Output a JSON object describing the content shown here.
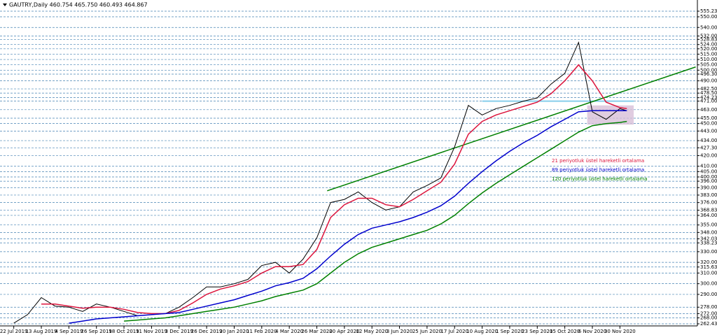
{
  "chart_data": {
    "type": "line",
    "title": "GAUTRY,Daily  460.754 465.750 460.493 464.867",
    "x": [
      0,
      8,
      16,
      24,
      32,
      40,
      48,
      56,
      64,
      72,
      80,
      88,
      96,
      104,
      112,
      120,
      128,
      136,
      144,
      152,
      160,
      168,
      176,
      184,
      192,
      200,
      208,
      216,
      224,
      232,
      240,
      248,
      256,
      264,
      272,
      280,
      288,
      296,
      304,
      312,
      320,
      328,
      336,
      344,
      352,
      356
    ],
    "series": [
      {
        "color": "#000000",
        "values": [
          263,
          271,
          287,
          279,
          278,
          274,
          281,
          278,
          274,
          270,
          271,
          272,
          278,
          287,
          297,
          297,
          300,
          304,
          317,
          320,
          310,
          323,
          343,
          376,
          379,
          386,
          376,
          369,
          372,
          386,
          392,
          399,
          428,
          467,
          458,
          464,
          467,
          471,
          474,
          487,
          497,
          526,
          461,
          454,
          464,
          462
        ]
      },
      {
        "name": "21 periyotluk üstel hareketli ortalama",
        "color": "#dc143c",
        "values": [
          null,
          null,
          281,
          281,
          279,
          277,
          278,
          278,
          276,
          273,
          272,
          272,
          275,
          282,
          290,
          295,
          298,
          302,
          310,
          316,
          316,
          318,
          332,
          362,
          374,
          380,
          380,
          374,
          372,
          379,
          387,
          395,
          412,
          440,
          452,
          458,
          462,
          466,
          470,
          478,
          490,
          505,
          490,
          470,
          465,
          464
        ]
      },
      {
        "name": "89 periyotluk üstel hareketli ortalama",
        "color": "#0000cd",
        "values": [
          null,
          null,
          null,
          null,
          263,
          265,
          267,
          268,
          269,
          270,
          271,
          272,
          273,
          276,
          279,
          282,
          285,
          289,
          293,
          298,
          301,
          305,
          314,
          326,
          337,
          346,
          352,
          355,
          358,
          362,
          367,
          373,
          382,
          394,
          405,
          415,
          424,
          432,
          439,
          447,
          454,
          461,
          462,
          462,
          462,
          462
        ]
      },
      {
        "name": "120 periyotluk üstel hareketli ortalama",
        "color": "#008000",
        "values": [
          null,
          null,
          null,
          null,
          null,
          null,
          null,
          null,
          265,
          266,
          267,
          268,
          270,
          272,
          274,
          276,
          278,
          281,
          284,
          288,
          291,
          294,
          300,
          310,
          320,
          328,
          334,
          338,
          342,
          346,
          350,
          356,
          364,
          375,
          385,
          394,
          402,
          410,
          418,
          426,
          434,
          442,
          448,
          450,
          451,
          452
        ]
      }
    ],
    "xlim": [
      -8,
      397
    ],
    "xticks": [
      {
        "value": 0,
        "label": "22 Jul 2019"
      },
      {
        "value": 16,
        "label": "13 Aug 2019"
      },
      {
        "value": 32,
        "label": "4 Sep 2019"
      },
      {
        "value": 48,
        "label": "26 Sep 2019"
      },
      {
        "value": 64,
        "label": "18 Oct 2019"
      },
      {
        "value": 80,
        "label": "11 Nov 2019"
      },
      {
        "value": 96,
        "label": "3 Dec 2019"
      },
      {
        "value": 112,
        "label": "26 Dec 2019"
      },
      {
        "value": 128,
        "label": "20 Jan 2020"
      },
      {
        "value": 144,
        "label": "11 Feb 2020"
      },
      {
        "value": 160,
        "label": "4 Mar 2020"
      },
      {
        "value": 176,
        "label": "26 Mar 2020"
      },
      {
        "value": 192,
        "label": "20 Apr 2020"
      },
      {
        "value": 208,
        "label": "12 May 2020"
      },
      {
        "value": 224,
        "label": "3 Jun 2020"
      },
      {
        "value": 240,
        "label": "25 Jun 2020"
      },
      {
        "value": 256,
        "label": "17 Jul 2020"
      },
      {
        "value": 272,
        "label": "10 Aug 2020"
      },
      {
        "value": 288,
        "label": "1 Sep 2020"
      },
      {
        "value": 304,
        "label": "23 Sep 2020"
      },
      {
        "value": 320,
        "label": "15 Oct 2020"
      },
      {
        "value": 336,
        "label": "6 Nov 2020"
      },
      {
        "value": 352,
        "label": "30 Nov 2020"
      }
    ],
    "ylim": [
      262.437,
      555.237
    ],
    "yticks": [
      555.237,
      {
        "value": 550,
        "label": "550.000"
      },
      {
        "value": 540,
        "label": "540.000"
      },
      {
        "value": 532,
        "label": "532.000"
      },
      528.837,
      {
        "value": 524,
        "label": "524.000"
      },
      {
        "value": 520,
        "label": "520.000"
      },
      {
        "value": 515,
        "label": "515.000"
      },
      {
        "value": 510,
        "label": "510.000"
      },
      {
        "value": 505,
        "label": "505.000"
      },
      {
        "value": 500,
        "label": "500.000"
      },
      {
        "value": 496.3,
        "label": "496.300"
      },
      {
        "value": 490,
        "label": "490.000"
      },
      {
        "value": 482.5,
        "label": "482.500"
      },
      {
        "value": 478.5,
        "label": "478.500"
      },
      474.237,
      {
        "value": 471,
        "label": "471.000"
      },
      {
        "value": 463,
        "label": "463.000"
      },
      {
        "value": 455,
        "label": "455.000"
      },
      {
        "value": 450,
        "label": "450.000"
      },
      {
        "value": 443,
        "label": "443.000"
      },
      {
        "value": 434,
        "label": "434.000"
      },
      {
        "value": 427.3,
        "label": "427.300"
      },
      {
        "value": 420,
        "label": "420.000"
      },
      {
        "value": 410,
        "label": "410.000"
      },
      {
        "value": 405,
        "label": "405.000"
      },
      {
        "value": 400,
        "label": "400.000"
      },
      {
        "value": 396,
        "label": "396.000"
      },
      {
        "value": 390,
        "label": "390.000"
      },
      {
        "value": 383,
        "label": "383.000"
      },
      {
        "value": 376,
        "label": "376.000"
      },
      368.837,
      {
        "value": 364,
        "label": "364.000"
      },
      {
        "value": 355,
        "label": "355.000"
      },
      {
        "value": 348,
        "label": "348.000"
      },
      342.037,
      338.237,
      {
        "value": 330,
        "label": "330.000"
      },
      {
        "value": 320,
        "label": "320.000"
      },
      315.637,
      {
        "value": 310,
        "label": "310.000"
      },
      {
        "value": 300,
        "label": "300.000"
      },
      {
        "value": 290,
        "label": "290.000"
      },
      {
        "value": 278,
        "label": "278.000"
      },
      {
        "value": 272,
        "label": "272.000"
      },
      {
        "value": 268,
        "label": "268.000"
      },
      262.437
    ],
    "grid": true,
    "grid_color": "#4682b4",
    "trend_line": {
      "x": [
        182,
        396
      ],
      "y": [
        387,
        503
      ],
      "color": "#008000"
    },
    "level_line": {
      "x": [
        272,
        360
      ],
      "value": 471,
      "color": "#87ceeb"
    },
    "zone": {
      "x": [
        333,
        360
      ],
      "y": [
        449,
        467
      ],
      "color": "#d8bfd8"
    }
  }
}
